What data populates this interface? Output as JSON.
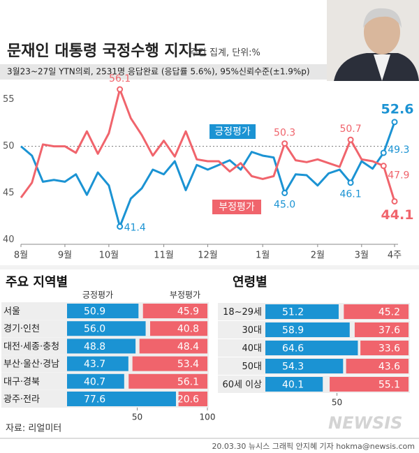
{
  "chart_data": [
    {
      "type": "line",
      "title": "문재인 대통령 국정수행 지지도",
      "subtitle": "주간 집계, 단위:%",
      "note": "3월23~27일 YTN의뢰, 2531명 응답완료 (응답률 5.6%), 95%신뢰수준(±1.9%p)",
      "categories": [
        "8월",
        null,
        null,
        null,
        "9월",
        null,
        null,
        null,
        "10월",
        null,
        null,
        null,
        null,
        "11월",
        null,
        null,
        null,
        "12월",
        null,
        null,
        null,
        null,
        "1월",
        null,
        null,
        null,
        null,
        "2월",
        null,
        null,
        null,
        "3월",
        null,
        null,
        "4주"
      ],
      "series": [
        {
          "name": "긍정평가",
          "color": "#1b93d3",
          "values": [
            50.0,
            49.0,
            46.2,
            46.4,
            46.2,
            47.0,
            44.8,
            47.2,
            45.8,
            41.4,
            44.4,
            45.5,
            47.5,
            47.0,
            48.4,
            45.3,
            48.0,
            47.5,
            48.0,
            48.5,
            47.5,
            49.4,
            49.0,
            48.8,
            45.0,
            47.0,
            46.9,
            45.8,
            47.1,
            47.5,
            46.1,
            48.4,
            47.6,
            49.3,
            52.6
          ],
          "value_labels": [
            null,
            null,
            null,
            null,
            null,
            null,
            null,
            null,
            null,
            "41.4",
            null,
            null,
            null,
            null,
            null,
            null,
            null,
            null,
            null,
            null,
            null,
            null,
            null,
            null,
            "45.0",
            null,
            null,
            null,
            null,
            null,
            "46.1",
            null,
            null,
            "49.3",
            "52.6"
          ]
        },
        {
          "name": "부정평가",
          "color": "#f0646c",
          "values": [
            44.5,
            46.1,
            50.2,
            50.0,
            50.0,
            49.3,
            51.6,
            49.2,
            51.4,
            56.1,
            53.0,
            51.2,
            49.0,
            50.6,
            48.9,
            51.6,
            48.6,
            48.4,
            48.4,
            47.3,
            48.2,
            46.8,
            46.5,
            46.8,
            50.3,
            48.5,
            48.3,
            48.6,
            48.2,
            47.8,
            50.7,
            48.6,
            48.4,
            47.9,
            44.1
          ],
          "value_labels": [
            null,
            null,
            null,
            null,
            null,
            null,
            null,
            null,
            null,
            "56.1",
            null,
            null,
            null,
            null,
            null,
            null,
            null,
            null,
            null,
            null,
            null,
            null,
            null,
            null,
            "50.3",
            null,
            null,
            null,
            null,
            null,
            "50.7",
            null,
            null,
            "47.9",
            "44.1"
          ]
        }
      ],
      "ylim": [
        39.5,
        56.7
      ],
      "yticks": [
        40,
        45,
        50,
        55
      ],
      "reference_line": 50
    },
    {
      "type": "split-bar",
      "title": "주요 지역별",
      "series_headers": true,
      "categories": [
        "서울",
        "경기·인천",
        "대전·세종·충청",
        "부산·울산·경남",
        "대구·경북",
        "광주·전라"
      ],
      "series": [
        {
          "name": "긍정평가",
          "color": "#1b93d3",
          "values": [
            50.9,
            56.0,
            48.8,
            43.7,
            40.7,
            77.6
          ],
          "value_labels": [
            "50.9",
            "56.0",
            "48.8",
            "43.7",
            "40.7",
            "77.6"
          ]
        },
        {
          "name": "부정평가",
          "color": "#f0646c",
          "values": [
            45.9,
            40.8,
            48.4,
            53.4,
            56.1,
            20.6
          ],
          "value_labels": [
            "45.9",
            "40.8",
            "48.4",
            "53.4",
            "56.1",
            "20.6"
          ]
        }
      ],
      "xlim": [
        0,
        100
      ],
      "xticks": [
        50,
        100
      ]
    },
    {
      "type": "split-bar",
      "title": "연령별",
      "series_headers": false,
      "categories": [
        "18~29세",
        "30대",
        "40대",
        "50대",
        "60세 이상"
      ],
      "series": [
        {
          "name": "긍정평가",
          "color": "#1b93d3",
          "values": [
            51.2,
            58.9,
            64.6,
            54.3,
            40.1
          ],
          "value_labels": [
            "51.2",
            "58.9",
            "64.6",
            "54.3",
            "40.1"
          ]
        },
        {
          "name": "부정평가",
          "color": "#f0646c",
          "values": [
            45.2,
            37.6,
            33.6,
            43.6,
            55.1
          ],
          "value_labels": [
            "45.2",
            "37.6",
            "33.6",
            "43.6",
            "55.1"
          ]
        }
      ],
      "xlim": [
        0,
        100
      ],
      "xticks": [
        50
      ]
    }
  ],
  "source": "자료: 리얼미터",
  "credit": "20.03.30 뉴시스 그래픽 안지혜 기자 hokma@newsis.com",
  "watermark": "NEWSIS"
}
